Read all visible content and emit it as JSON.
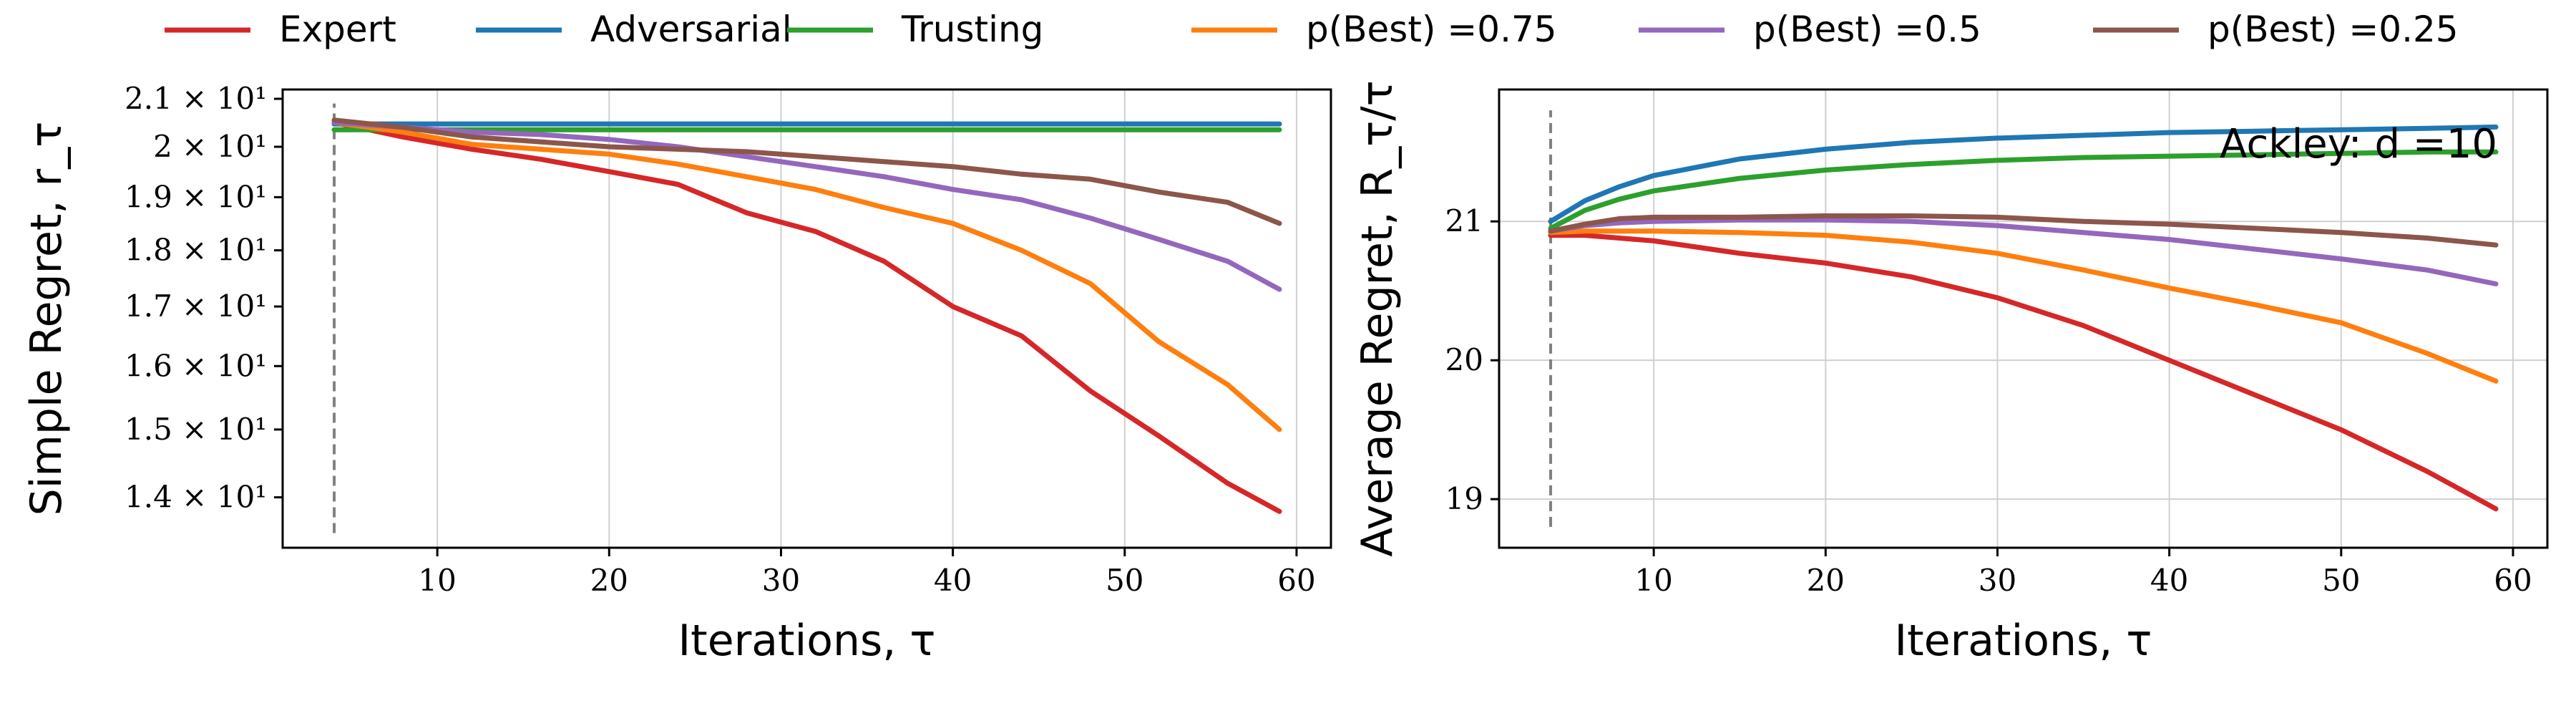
{
  "legend": {
    "entries": [
      {
        "label": "Expert",
        "color": "#d62728"
      },
      {
        "label": "Adversarial",
        "color": "#1f77b4"
      },
      {
        "label": "Trusting",
        "color": "#2ca02c"
      },
      {
        "label": "p(Best) =0.75",
        "color": "#ff7f0e"
      },
      {
        "label": "p(Best) =0.5",
        "color": "#9467bd"
      },
      {
        "label": "p(Best) =0.25",
        "color": "#8c564b"
      }
    ]
  },
  "chart_data": [
    {
      "type": "line",
      "xlabel": "Iterations, τ",
      "ylabel": "Simple Regret, r_τ",
      "yscale": "log",
      "xlim": [
        1,
        62
      ],
      "ylim": [
        13.3,
        21.2
      ],
      "xticks": [
        10,
        20,
        30,
        40,
        50,
        60
      ],
      "yticks": [
        {
          "value": 21,
          "label": "2.1 × 10¹"
        },
        {
          "value": 20,
          "label": "2 × 10¹"
        },
        {
          "value": 19,
          "label": "1.9 × 10¹"
        },
        {
          "value": 18,
          "label": "1.8 × 10¹"
        },
        {
          "value": 17,
          "label": "1.7 × 10¹"
        },
        {
          "value": 16,
          "label": "1.6 × 10¹"
        },
        {
          "value": 15,
          "label": "1.5 × 10¹"
        },
        {
          "value": 14,
          "label": "1.4 × 10¹"
        }
      ],
      "grid": "vertical",
      "vline": {
        "x": 4,
        "y_range": [
          13.5,
          20.9
        ],
        "style": "dashed",
        "color": "#808080"
      },
      "x": [
        4,
        8,
        12,
        16,
        20,
        24,
        28,
        32,
        36,
        40,
        44,
        48,
        52,
        56,
        59
      ],
      "series": [
        {
          "name": "Expert",
          "color": "#d62728",
          "values": [
            20.5,
            20.2,
            19.95,
            19.75,
            19.5,
            19.25,
            18.7,
            18.35,
            17.8,
            17.0,
            16.5,
            15.6,
            14.9,
            14.2,
            13.8
          ]
        },
        {
          "name": "Adversarial",
          "color": "#1f77b4",
          "values": [
            20.47,
            20.47,
            20.47,
            20.47,
            20.47,
            20.47,
            20.47,
            20.47,
            20.47,
            20.47,
            20.47,
            20.47,
            20.47,
            20.47,
            20.47
          ]
        },
        {
          "name": "Trusting",
          "color": "#2ca02c",
          "values": [
            20.35,
            20.35,
            20.35,
            20.35,
            20.35,
            20.35,
            20.35,
            20.35,
            20.35,
            20.35,
            20.35,
            20.35,
            20.35,
            20.35,
            20.35
          ]
        },
        {
          "name": "p(Best) =0.75",
          "color": "#ff7f0e",
          "values": [
            20.5,
            20.3,
            20.05,
            19.95,
            19.85,
            19.65,
            19.4,
            19.15,
            18.8,
            18.5,
            18.0,
            17.4,
            16.4,
            15.7,
            15.0
          ]
        },
        {
          "name": "p(Best) =0.5",
          "color": "#9467bd",
          "values": [
            20.5,
            20.4,
            20.3,
            20.25,
            20.15,
            20.0,
            19.8,
            19.6,
            19.4,
            19.15,
            18.95,
            18.6,
            18.2,
            17.8,
            17.3
          ]
        },
        {
          "name": "p(Best) =0.25",
          "color": "#8c564b",
          "values": [
            20.55,
            20.4,
            20.2,
            20.1,
            20.0,
            19.95,
            19.9,
            19.8,
            19.7,
            19.6,
            19.45,
            19.35,
            19.1,
            18.9,
            18.5
          ]
        }
      ]
    },
    {
      "type": "line",
      "xlabel": "Iterations, τ",
      "ylabel": "Average Regret, R_τ/τ",
      "annotation": "Ackley: d =10",
      "xlim": [
        1,
        62
      ],
      "ylim": [
        18.65,
        21.95
      ],
      "xticks": [
        10,
        20,
        30,
        40,
        50,
        60
      ],
      "yticks": [
        19,
        20,
        21
      ],
      "grid": "both",
      "vline": {
        "x": 4,
        "y_range": [
          18.8,
          21.8
        ],
        "style": "dashed",
        "color": "#808080"
      },
      "x": [
        4,
        6,
        8,
        10,
        15,
        20,
        25,
        30,
        35,
        40,
        45,
        50,
        55,
        59
      ],
      "series": [
        {
          "name": "Expert",
          "color": "#d62728",
          "values": [
            20.9,
            20.9,
            20.88,
            20.86,
            20.77,
            20.7,
            20.6,
            20.45,
            20.25,
            20.0,
            19.75,
            19.5,
            19.2,
            18.93
          ]
        },
        {
          "name": "Adversarial",
          "color": "#1f77b4",
          "values": [
            21.0,
            21.15,
            21.25,
            21.33,
            21.45,
            21.52,
            21.57,
            21.6,
            21.62,
            21.64,
            21.65,
            21.66,
            21.67,
            21.68
          ]
        },
        {
          "name": "Trusting",
          "color": "#2ca02c",
          "values": [
            20.95,
            21.08,
            21.16,
            21.22,
            21.31,
            21.37,
            21.41,
            21.44,
            21.46,
            21.47,
            21.48,
            21.49,
            21.5,
            21.5
          ]
        },
        {
          "name": "p(Best) =0.75",
          "color": "#ff7f0e",
          "values": [
            20.92,
            20.93,
            20.93,
            20.93,
            20.92,
            20.9,
            20.85,
            20.77,
            20.65,
            20.52,
            20.4,
            20.27,
            20.05,
            19.85
          ]
        },
        {
          "name": "p(Best) =0.5",
          "color": "#9467bd",
          "values": [
            20.93,
            20.97,
            20.99,
            21.0,
            21.01,
            21.01,
            21.0,
            20.97,
            20.92,
            20.87,
            20.8,
            20.73,
            20.65,
            20.55
          ]
        },
        {
          "name": "p(Best) =0.25",
          "color": "#8c564b",
          "values": [
            20.93,
            20.98,
            21.02,
            21.03,
            21.03,
            21.04,
            21.04,
            21.03,
            21.0,
            20.98,
            20.95,
            20.92,
            20.88,
            20.83
          ]
        }
      ]
    }
  ]
}
